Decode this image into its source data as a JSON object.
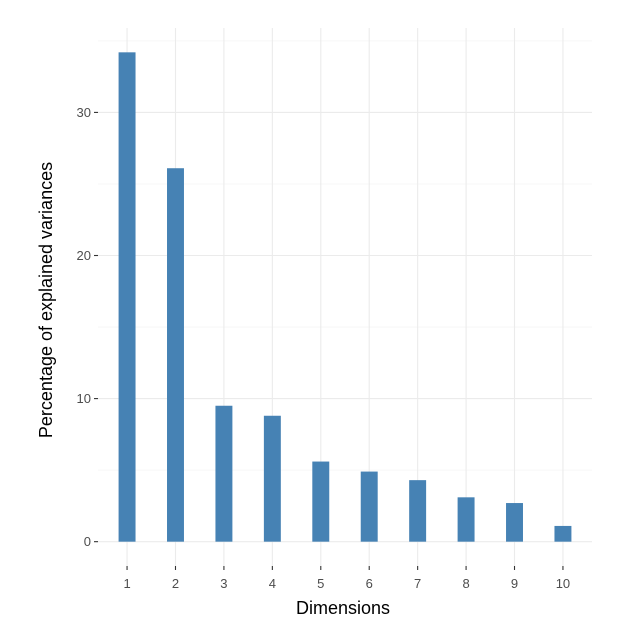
{
  "chart_data": {
    "type": "bar",
    "xlabel": "Dimensions",
    "ylabel": "Percentage of explained variances",
    "categories": [
      "1",
      "2",
      "3",
      "4",
      "5",
      "6",
      "7",
      "8",
      "9",
      "10"
    ],
    "values": [
      34.2,
      26.1,
      9.5,
      8.8,
      5.6,
      4.9,
      4.3,
      3.1,
      2.7,
      1.1
    ],
    "ylim": [
      -1.7,
      35.9
    ],
    "yticks": [
      0,
      10,
      20,
      30
    ],
    "grid": true,
    "bar_color": "#4682b4",
    "background": "#ffffff",
    "grid_color": "#ebebeb"
  }
}
